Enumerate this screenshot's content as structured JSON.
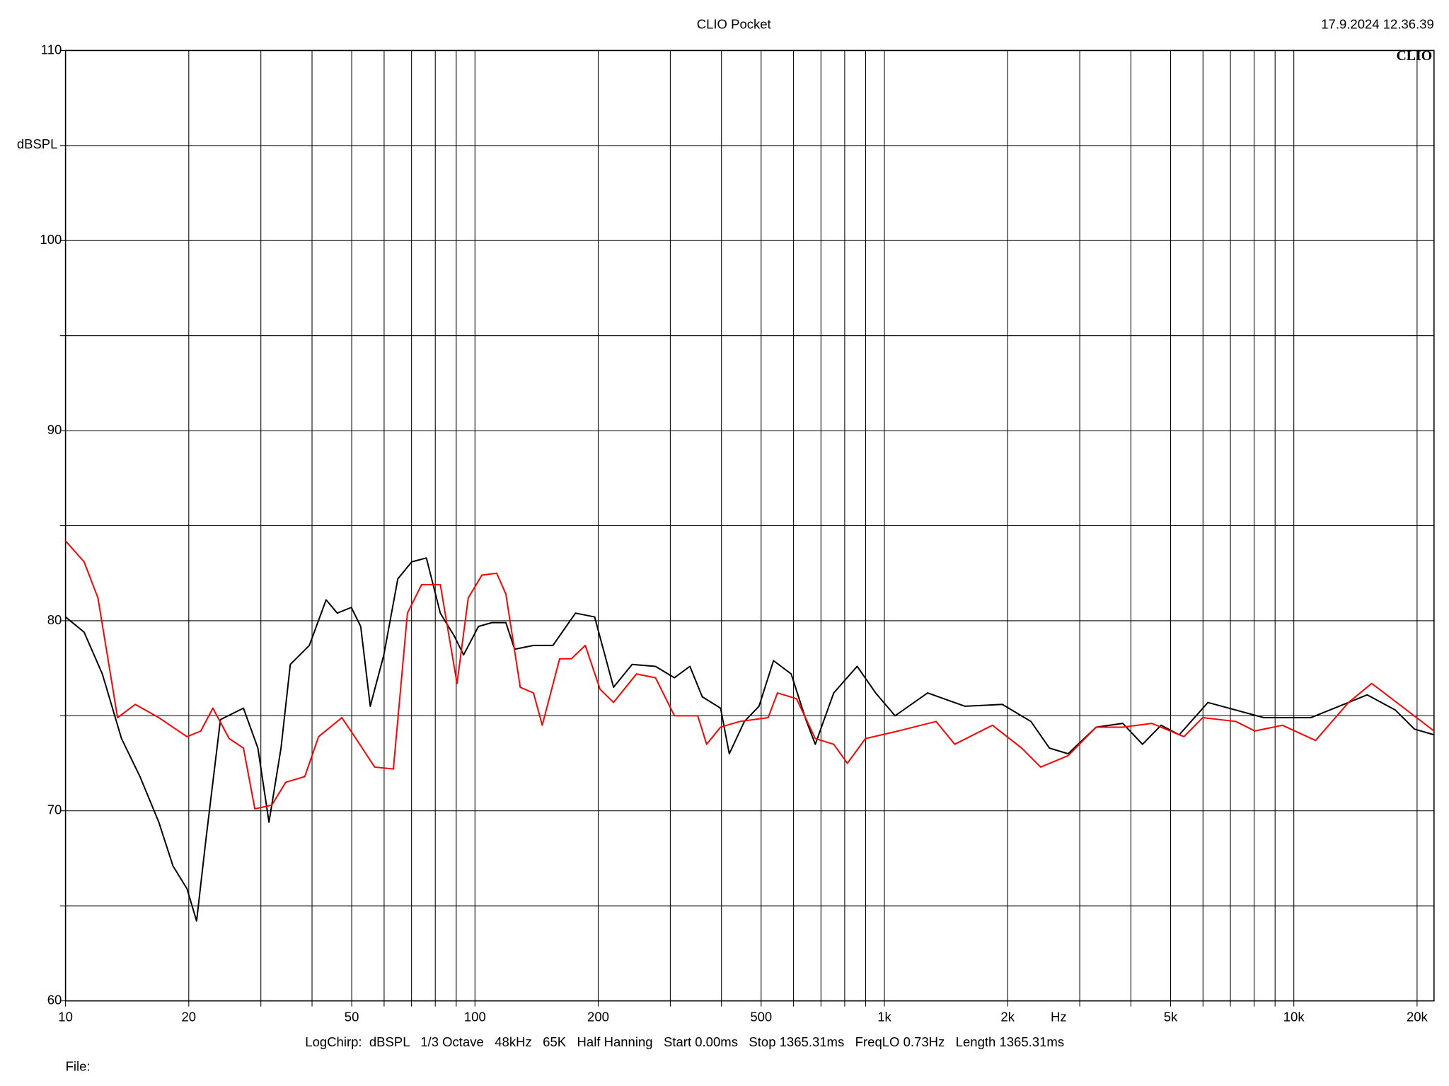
{
  "chart_data": {
    "type": "line",
    "title": "CLIO Pocket",
    "timestamp": "17.9.2024 12.36.39",
    "logo": "CLIO",
    "y_label": "dBSPL",
    "x_label": "Hz",
    "footer": "LogChirp:  dBSPL   1/3 Octave   48kHz   65K   Half Hanning   Start 0.00ms   Stop 1365.31ms   FreqLO 0.73Hz   Length 1365.31ms",
    "file_label": "File:",
    "x_log": true,
    "grid": true,
    "xlim": [
      10,
      22000
    ],
    "xticks": [
      10,
      20,
      50,
      100,
      200,
      500,
      {
        "value": 1000,
        "label": "1k"
      },
      {
        "value": 2000,
        "label": "2k"
      },
      {
        "value": 5000,
        "label": "5k"
      },
      {
        "value": 10000,
        "label": "10k"
      },
      {
        "value": 20000,
        "label": "20k"
      }
    ],
    "x_minor_ticks": [
      30,
      40,
      60,
      70,
      80,
      90,
      300,
      400,
      600,
      700,
      800,
      900,
      3000,
      4000,
      6000,
      7000,
      8000,
      9000
    ],
    "ylim": [
      60,
      110
    ],
    "yticks": [
      60,
      70,
      80,
      90,
      100,
      110
    ],
    "y_minor_ticks": [
      65,
      75,
      85,
      95,
      105
    ],
    "series": [
      {
        "color": "#000000",
        "x": [
          10,
          11.1,
          12.3,
          13.7,
          15.2,
          16.9,
          18.3,
          19.8,
          20.9,
          22.0,
          23.9,
          27.2,
          29.5,
          31.4,
          33.6,
          35.4,
          39.4,
          43.3,
          46.1,
          49.9,
          52.6,
          55.5,
          59.9,
          64.8,
          70.1,
          76.1,
          82.3,
          89.0,
          93.8,
          102,
          110,
          119,
          125,
          139,
          155,
          176,
          196,
          218,
          242,
          276,
          307,
          335,
          359,
          398,
          418,
          455,
          494,
          536,
          592,
          643,
          678,
          752,
          858,
          952,
          1062,
          1275,
          1574,
          1941,
          2280,
          2530,
          2810,
          3290,
          3820,
          4270,
          4740,
          5250,
          6170,
          7220,
          8450,
          11000,
          13600,
          15100,
          17700,
          19700,
          22000
        ],
        "values": [
          80.2,
          79.4,
          77.2,
          73.8,
          71.8,
          69.4,
          67.1,
          65.9,
          64.2,
          68.4,
          74.8,
          75.4,
          73.3,
          69.4,
          73.3,
          77.7,
          78.7,
          81.1,
          80.4,
          80.7,
          79.7,
          75.5,
          78.2,
          82.2,
          83.1,
          83.3,
          80.4,
          79.2,
          78.2,
          79.7,
          79.9,
          79.9,
          78.5,
          78.7,
          78.7,
          80.4,
          80.2,
          76.5,
          77.7,
          77.6,
          77.0,
          77.6,
          76.0,
          75.4,
          73.0,
          74.7,
          75.5,
          77.9,
          77.2,
          74.8,
          73.5,
          76.2,
          77.6,
          76.2,
          75.0,
          76.2,
          75.5,
          75.6,
          74.7,
          73.3,
          73.0,
          74.4,
          74.6,
          73.5,
          74.5,
          74.0,
          75.7,
          75.3,
          74.9,
          74.9,
          75.7,
          76.1,
          75.3,
          74.3,
          74.0
        ]
      },
      {
        "color": "#ff0000",
        "x": [
          10,
          11.1,
          12.0,
          13.4,
          14.8,
          16.9,
          19.8,
          21.4,
          22.9,
          25.1,
          27.2,
          29.0,
          31.9,
          34.5,
          38.4,
          41.5,
          47.3,
          51.2,
          56.9,
          63.2,
          68.4,
          74.1,
          82.3,
          90.4,
          96.3,
          104,
          113,
          119,
          129,
          139,
          146,
          161,
          172,
          186,
          202,
          218,
          248,
          276,
          307,
          350,
          368,
          398,
          443,
          520,
          548,
          610,
          678,
          752,
          812,
          899,
          1081,
          1337,
          1485,
          1836,
          2164,
          2408,
          2810,
          3290,
          3820,
          4500,
          5390,
          5990,
          7220,
          8030,
          9380,
          11300,
          13600,
          15500,
          18600,
          22000
        ],
        "values": [
          84.2,
          83.1,
          81.2,
          74.9,
          75.6,
          74.9,
          73.9,
          74.2,
          75.4,
          73.8,
          73.3,
          70.1,
          70.3,
          71.5,
          71.8,
          73.9,
          74.9,
          73.8,
          72.3,
          72.2,
          80.4,
          81.9,
          81.9,
          76.7,
          81.2,
          82.4,
          82.5,
          81.4,
          76.5,
          76.2,
          74.5,
          78.0,
          78.0,
          78.7,
          76.4,
          75.7,
          77.2,
          77.0,
          75.0,
          75.0,
          73.5,
          74.4,
          74.7,
          74.9,
          76.2,
          75.9,
          73.8,
          73.5,
          72.5,
          73.8,
          74.2,
          74.7,
          73.5,
          74.5,
          73.3,
          72.3,
          72.9,
          74.4,
          74.4,
          74.6,
          73.9,
          74.9,
          74.7,
          74.2,
          74.5,
          73.7,
          75.7,
          76.7,
          75.4,
          74.2
        ]
      }
    ]
  }
}
